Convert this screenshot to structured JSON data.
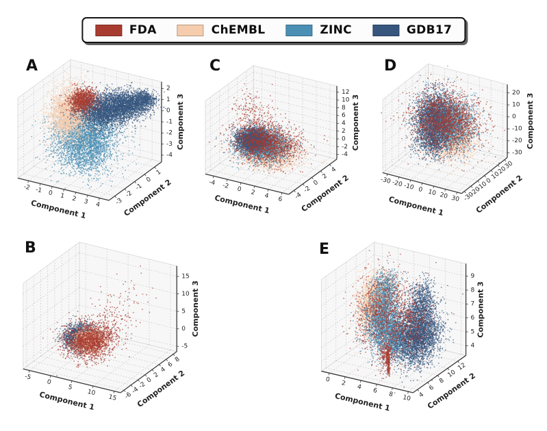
{
  "figure": {
    "legend": {
      "items": [
        {
          "label": "FDA",
          "color": "#a83b30"
        },
        {
          "label": "ChEMBL",
          "color": "#f5cdae"
        },
        {
          "label": "ZINC",
          "color": "#4b8fb4"
        },
        {
          "label": "GDB17",
          "color": "#36567e"
        }
      ]
    }
  },
  "chart_data": [
    {
      "panel": "A",
      "type": "scatter3d",
      "view": {
        "elev": 25,
        "azim": -60
      },
      "box_aspect": [
        1,
        1,
        0.84
      ],
      "axes": {
        "x": {
          "label": "Component 1",
          "range": [
            -2.9,
            4.8
          ],
          "ticks": [
            -2,
            -1,
            0,
            1,
            2,
            3,
            4
          ]
        },
        "y": {
          "label": "Component 2",
          "range": [
            -3.6,
            1.7
          ],
          "ticks": [
            -3,
            -2,
            -1,
            0,
            1
          ]
        },
        "z": {
          "label": "Component 3",
          "range": [
            -4.6,
            2.6
          ],
          "ticks": [
            -4,
            -3,
            -2,
            -1,
            0,
            1,
            2
          ]
        }
      },
      "clusters": [
        {
          "series": "ZINC",
          "n": 3000,
          "center": [
            0.6,
            -1.0,
            -1.6
          ],
          "sigma": [
            1.1,
            0.9,
            1.2
          ]
        },
        {
          "series": "ZINC",
          "n": 500,
          "center": [
            1.2,
            -1.4,
            -3.1
          ],
          "sigma": [
            0.9,
            0.7,
            0.8
          ]
        },
        {
          "series": "ChEMBL",
          "n": 2600,
          "center": [
            -1.0,
            -0.6,
            -0.2
          ],
          "sigma": [
            0.65,
            0.7,
            1.05
          ]
        },
        {
          "series": "GDB17",
          "n": 2400,
          "center": [
            1.5,
            -0.1,
            0.3
          ],
          "sigma": [
            1.0,
            0.65,
            0.55
          ]
        },
        {
          "series": "GDB17",
          "n": 1500,
          "center": [
            2.9,
            0.6,
            0.8
          ],
          "sigma": [
            0.85,
            0.5,
            0.45
          ]
        },
        {
          "series": "GDB17",
          "n": 500,
          "center": [
            3.9,
            1.0,
            1.3
          ],
          "sigma": [
            0.5,
            0.3,
            0.3
          ]
        },
        {
          "series": "FDA",
          "n": 950,
          "center": [
            -0.15,
            -0.35,
            1.0
          ],
          "sigma": [
            0.5,
            0.45,
            0.45
          ]
        }
      ]
    },
    {
      "panel": "B",
      "type": "scatter3d",
      "view": {
        "elev": 25,
        "azim": -60
      },
      "box_aspect": [
        1,
        1,
        0.84
      ],
      "axes": {
        "x": {
          "label": "Component 1",
          "range": [
            -6.5,
            16.5
          ],
          "ticks": [
            -5,
            0,
            5,
            10,
            15
          ]
        },
        "y": {
          "label": "Component 2",
          "range": [
            -7.0,
            9.0
          ],
          "ticks": [
            -6,
            -4,
            -2,
            0,
            2,
            4,
            6,
            8
          ]
        },
        "z": {
          "label": "Component 3",
          "range": [
            -6.5,
            18.0
          ],
          "ticks": [
            -5,
            0,
            5,
            10,
            15
          ]
        }
      },
      "clusters": [
        {
          "series": "ZINC",
          "n": 260,
          "center": [
            1.2,
            0.6,
            -1.0
          ],
          "sigma": [
            1.2,
            1.0,
            1.1
          ]
        },
        {
          "series": "GDB17",
          "n": 2000,
          "center": [
            0.6,
            0.6,
            -0.8
          ],
          "sigma": [
            1.4,
            1.2,
            1.4
          ]
        },
        {
          "series": "ChEMBL",
          "n": 1500,
          "center": [
            2.8,
            0.4,
            -0.9
          ],
          "sigma": [
            1.4,
            1.1,
            1.2
          ]
        },
        {
          "series": "FDA",
          "n": 1700,
          "center": [
            3.2,
            0.2,
            -0.9
          ],
          "sigma": [
            2.4,
            1.9,
            2.1
          ]
        },
        {
          "series": "FDA",
          "n": 140,
          "center": [
            6.5,
            2.0,
            4.5
          ],
          "sigma": [
            2.6,
            1.6,
            3.4
          ]
        },
        {
          "series": "FDA",
          "n": 35,
          "center": [
            10.0,
            3.0,
            12.0
          ],
          "sigma": [
            2.2,
            1.5,
            3.0
          ]
        }
      ]
    },
    {
      "panel": "C",
      "type": "scatter3d",
      "view": {
        "elev": 25,
        "azim": -60
      },
      "box_aspect": [
        1,
        1,
        0.84
      ],
      "axes": {
        "x": {
          "label": "Component 1",
          "range": [
            -5.2,
            7.0
          ],
          "ticks": [
            -4,
            -2,
            0,
            2,
            4,
            6
          ]
        },
        "y": {
          "label": "Component 2",
          "range": [
            -5.2,
            5.6
          ],
          "ticks": [
            -4,
            -2,
            0,
            2,
            4
          ]
        },
        "z": {
          "label": "Component 3",
          "range": [
            -5.2,
            13.6
          ],
          "ticks": [
            -4,
            -2,
            0,
            2,
            4,
            6,
            8,
            10,
            12
          ]
        }
      },
      "clusters": [
        {
          "series": "ChEMBL",
          "n": 2600,
          "center": [
            0.9,
            -0.4,
            -0.9
          ],
          "sigma": [
            1.9,
            1.4,
            1.5
          ]
        },
        {
          "series": "ZINC",
          "n": 2600,
          "center": [
            -0.3,
            0.1,
            -0.2
          ],
          "sigma": [
            1.6,
            1.3,
            1.5
          ]
        },
        {
          "series": "GDB17",
          "n": 2200,
          "center": [
            -1.9,
            0.4,
            0.4
          ],
          "sigma": [
            1.0,
            1.0,
            1.2
          ]
        },
        {
          "series": "FDA",
          "n": 1500,
          "center": [
            0.2,
            0.2,
            0.6
          ],
          "sigma": [
            2.2,
            1.6,
            2.0
          ]
        },
        {
          "series": "FDA",
          "n": 180,
          "center": [
            -2.6,
            1.2,
            6.0
          ],
          "sigma": [
            1.2,
            1.0,
            2.6
          ]
        }
      ]
    },
    {
      "panel": "D",
      "type": "scatter3d",
      "view": {
        "elev": 27,
        "azim": -60
      },
      "box_aspect": [
        1,
        1,
        0.9
      ],
      "axes": {
        "x": {
          "label": "Component 1",
          "range": [
            -34,
            34
          ],
          "ticks": [
            -30,
            -20,
            -10,
            0,
            10,
            20,
            30
          ]
        },
        "y": {
          "label": "Component 2",
          "range": [
            -34,
            34
          ],
          "ticks": [
            -30,
            -20,
            -10,
            0,
            10,
            20,
            30
          ]
        },
        "z": {
          "label": "Component 3",
          "range": [
            -34,
            27
          ],
          "ticks": [
            -30,
            -20,
            -10,
            0,
            10,
            20
          ]
        }
      },
      "clusters": [
        {
          "series": "ChEMBL",
          "n": 2300,
          "center": [
            7,
            -3,
            -7
          ],
          "sigma": [
            9,
            8,
            8
          ]
        },
        {
          "series": "ZINC",
          "n": 2600,
          "center": [
            1,
            1,
            1
          ],
          "sigma": [
            10,
            9,
            9.5
          ]
        },
        {
          "series": "GDB17",
          "n": 1600,
          "center": [
            -12,
            4,
            2
          ],
          "sigma": [
            7,
            8,
            9.5
          ]
        },
        {
          "series": "GDB17",
          "n": 800,
          "center": [
            -6,
            -7,
            -11
          ],
          "sigma": [
            7,
            7,
            7
          ]
        },
        {
          "series": "FDA",
          "n": 1800,
          "center": [
            0,
            1,
            3
          ],
          "sigma": [
            13,
            11,
            11.5
          ]
        }
      ]
    },
    {
      "panel": "E",
      "type": "scatter3d",
      "view": {
        "elev": 24,
        "azim": -60
      },
      "box_aspect": [
        1,
        1,
        0.95
      ],
      "axes": {
        "x": {
          "label": "Component 1",
          "range": [
            -1.0,
            10.6
          ],
          "ticks": [
            0,
            2,
            4,
            6,
            8,
            10
          ]
        },
        "y": {
          "label": "Component 2",
          "range": [
            3.1,
            13.6
          ],
          "ticks": [
            4,
            6,
            8,
            10,
            12
          ]
        },
        "z": {
          "label": "Component 3",
          "range": [
            3.3,
            9.9
          ],
          "ticks": [
            4,
            5,
            6,
            7,
            8,
            9
          ]
        }
      },
      "clusters": [
        {
          "series": "ChEMBL",
          "n": 1700,
          "center": [
            3.0,
            7.9,
            7.9
          ],
          "sigma": [
            0.85,
            1.1,
            0.8
          ]
        },
        {
          "series": "ChEMBL",
          "n": 600,
          "center": [
            2.5,
            6.9,
            6.9
          ],
          "sigma": [
            0.6,
            0.8,
            0.8
          ]
        },
        {
          "series": "ZINC",
          "n": 1900,
          "center": [
            4.1,
            7.4,
            6.6
          ],
          "sigma": [
            0.9,
            1.1,
            1.0
          ]
        },
        {
          "series": "ZINC",
          "n": 1000,
          "center": [
            5.4,
            7.7,
            5.3
          ],
          "sigma": [
            0.9,
            1.0,
            0.7
          ]
        },
        {
          "series": "ZINC",
          "n": 500,
          "center": [
            3.7,
            8.5,
            8.5
          ],
          "sigma": [
            0.7,
            0.9,
            0.6
          ]
        },
        {
          "series": "GDB17",
          "n": 3000,
          "center": [
            7.5,
            8.9,
            5.5
          ],
          "sigma": [
            1.05,
            1.5,
            0.95
          ]
        },
        {
          "series": "GDB17",
          "n": 700,
          "center": [
            6.9,
            10.6,
            7.3
          ],
          "sigma": [
            0.7,
            0.9,
            0.85
          ]
        },
        {
          "series": "FDA",
          "n": 1100,
          "center": [
            4.2,
            7.4,
            6.9
          ],
          "sigma": [
            1.6,
            1.4,
            1.5
          ]
        },
        {
          "series": "FDA",
          "n": 350,
          "center": [
            6.7,
            9.1,
            6.4
          ],
          "sigma": [
            1.0,
            1.2,
            1.1
          ]
        },
        {
          "series": "FDA",
          "n": 200,
          "shape": "line",
          "from": [
            5.1,
            6.7,
            4.7
          ],
          "to": [
            5.5,
            6.3,
            3.1
          ],
          "jitter": [
            0.08,
            0.08,
            0.06
          ]
        },
        {
          "series": "FDA",
          "n": 180,
          "center": [
            5.0,
            6.6,
            4.4
          ],
          "sigma": [
            0.4,
            0.4,
            0.5
          ]
        }
      ]
    }
  ]
}
